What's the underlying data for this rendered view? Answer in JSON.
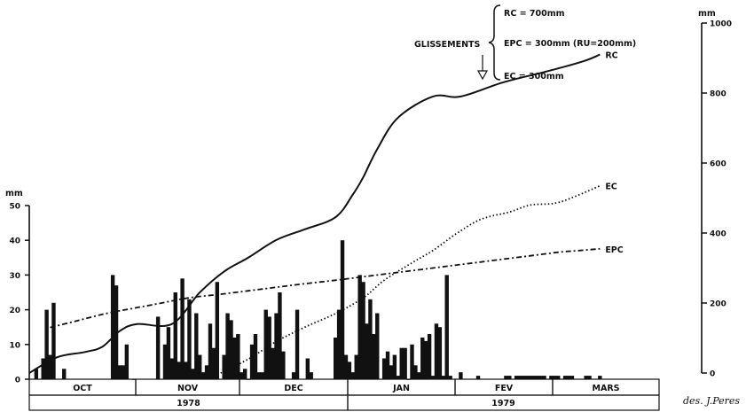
{
  "chart_data": {
    "type": "bar+line",
    "annotation": {
      "heading": "GLISSEMENTS",
      "lines": [
        "RC = 700mm",
        "EPC = 300mm (RU=200mm)",
        "EC = 300mm"
      ]
    },
    "left_axis": {
      "unit": "mm",
      "ylim": [
        0,
        50
      ],
      "ticks": [
        "0",
        "10",
        "20",
        "30",
        "40",
        "50"
      ]
    },
    "right_axis": {
      "unit": "mm",
      "ylim": [
        0,
        1000
      ],
      "ticks": [
        "0",
        "200",
        "400",
        "600",
        "800",
        "1000"
      ]
    },
    "months": [
      "OCT",
      "NOV",
      "DEC",
      "JAN",
      "FEV",
      "MARS"
    ],
    "years": [
      "1978",
      "1979"
    ],
    "x_range_days": [
      0,
      181
    ],
    "daily_rainfall_bars": {
      "axis": "left",
      "x_day": [
        2,
        4,
        5,
        6,
        7,
        10,
        24,
        25,
        26,
        27,
        28,
        30,
        37,
        39,
        40,
        41,
        42,
        43,
        44,
        45,
        46,
        47,
        48,
        49,
        50,
        51,
        52,
        53,
        54,
        56,
        57,
        58,
        59,
        60,
        61,
        62,
        63,
        64,
        65,
        66,
        67,
        68,
        69,
        70,
        71,
        72,
        73,
        76,
        77,
        80,
        81,
        88,
        89,
        90,
        91,
        92,
        93,
        94,
        95,
        96,
        97,
        98,
        99,
        100,
        102,
        103,
        104,
        105,
        106,
        107,
        108,
        109,
        110,
        111,
        112,
        113,
        114,
        115,
        116,
        117,
        118,
        119,
        120,
        121,
        124,
        129,
        137,
        138,
        140,
        141,
        142,
        143,
        144,
        145,
        146,
        147,
        148,
        150,
        151,
        152,
        154,
        155,
        156,
        160,
        161,
        164
      ],
      "values": [
        3,
        6,
        20,
        7,
        22,
        3,
        30,
        27,
        4,
        4,
        10,
        0,
        18,
        10,
        15,
        6,
        25,
        5,
        29,
        5,
        23,
        3,
        19,
        7,
        2,
        4,
        16,
        9,
        28,
        7,
        19,
        17,
        12,
        13,
        2,
        3,
        0,
        10,
        13,
        2,
        2,
        20,
        18,
        9,
        19,
        25,
        8,
        2,
        20,
        6,
        2,
        12,
        20,
        40,
        7,
        5,
        2,
        7,
        30,
        28,
        16,
        23,
        13,
        19,
        6,
        8,
        4,
        7,
        1,
        9,
        9,
        0,
        10,
        4,
        2,
        12,
        11,
        13,
        1,
        16,
        15,
        1,
        30,
        1,
        2,
        1,
        1,
        1,
        1,
        1,
        1,
        1,
        1,
        1,
        1,
        1,
        1,
        1,
        1,
        1,
        1,
        1,
        1,
        1,
        1,
        1
      ]
    },
    "cumulative_curves": [
      {
        "name": "RC",
        "axis": "right",
        "style": "solid",
        "x_day": [
          0,
          8,
          16,
          21,
          26,
          31,
          41,
          49,
          56,
          63,
          71,
          79,
          88,
          93,
          96,
          100,
          106,
          116,
          124,
          136,
          148,
          159,
          164
        ],
        "values": [
          0,
          45,
          60,
          75,
          120,
          140,
          140,
          230,
          290,
          330,
          380,
          410,
          445,
          510,
          560,
          640,
          730,
          790,
          790,
          830,
          860,
          890,
          910
        ]
      },
      {
        "name": "EC",
        "axis": "right",
        "style": "dotted",
        "x_day": [
          55,
          63,
          71,
          79,
          88,
          96,
          102,
          110,
          116,
          123,
          130,
          138,
          144,
          151,
          157,
          164
        ],
        "values": [
          0,
          40,
          90,
          130,
          170,
          215,
          265,
          315,
          350,
          400,
          440,
          460,
          480,
          485,
          505,
          535
        ]
      },
      {
        "name": "EPC",
        "axis": "right",
        "style": "dashed",
        "x_day": [
          6,
          14,
          22,
          30,
          38,
          46,
          55,
          63,
          71,
          79,
          88,
          96,
          104,
          112,
          120,
          128,
          136,
          144,
          152,
          158,
          164
        ],
        "values": [
          130,
          150,
          170,
          185,
          200,
          215,
          225,
          235,
          245,
          255,
          265,
          275,
          285,
          295,
          305,
          315,
          325,
          335,
          345,
          350,
          355
        ]
      }
    ]
  },
  "credit": "des. J.Peres"
}
